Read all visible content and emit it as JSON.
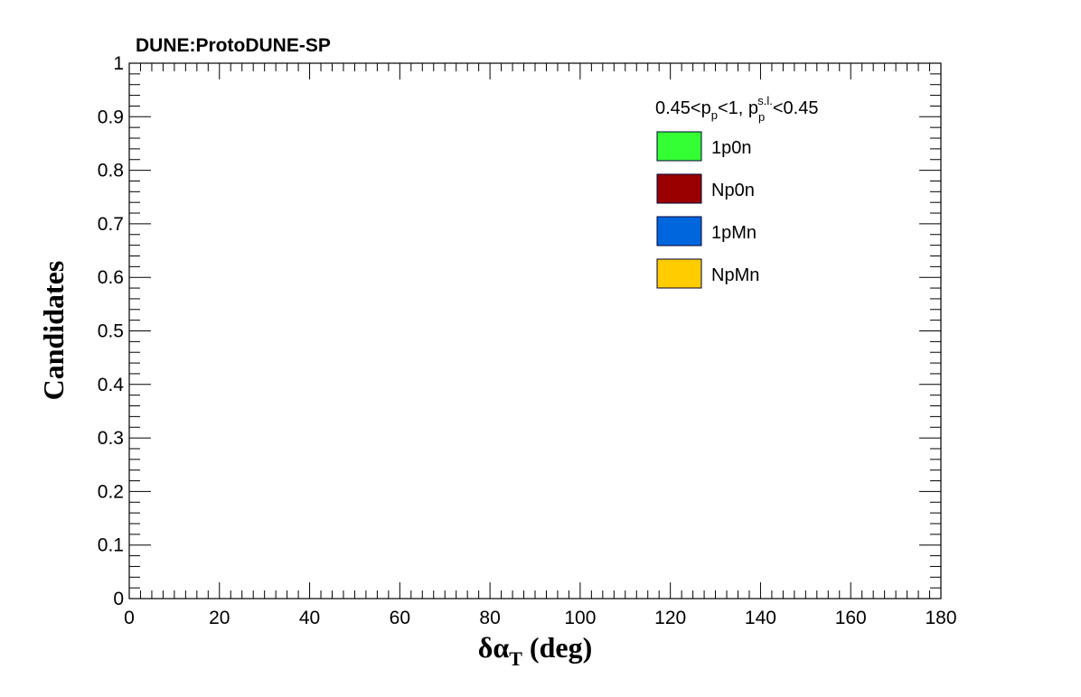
{
  "chart_data": {
    "type": "bar",
    "title": "DUNE:ProtoDUNE-SP",
    "xlabel": {
      "base": "δα",
      "sub": "T",
      "unit": " (deg)"
    },
    "ylabel": "Candidates",
    "xlim": [
      0,
      180
    ],
    "ylim": [
      0,
      1
    ],
    "x_ticks": [
      "0",
      "20",
      "40",
      "60",
      "80",
      "100",
      "120",
      "140",
      "160",
      "180"
    ],
    "y_ticks": [
      "0",
      "0.1",
      "0.2",
      "0.3",
      "0.4",
      "0.5",
      "0.6",
      "0.7",
      "0.8",
      "0.9",
      "1"
    ],
    "grid": false,
    "legend_placement": "top-right",
    "legend_header": {
      "p1": "0.45<p",
      "p1_sub": "p",
      "p2": "<1, p",
      "p2_sub": "p",
      "p2_sup": "s.l.",
      "p3": "<0.45"
    },
    "series": [
      {
        "name": "1p0n",
        "color": "#33ff33",
        "values": []
      },
      {
        "name": "Np0n",
        "color": "#990000",
        "values": []
      },
      {
        "name": "1pMn",
        "color": "#0066dd",
        "values": []
      },
      {
        "name": "NpMn",
        "color": "#ffcc00",
        "values": []
      }
    ]
  }
}
